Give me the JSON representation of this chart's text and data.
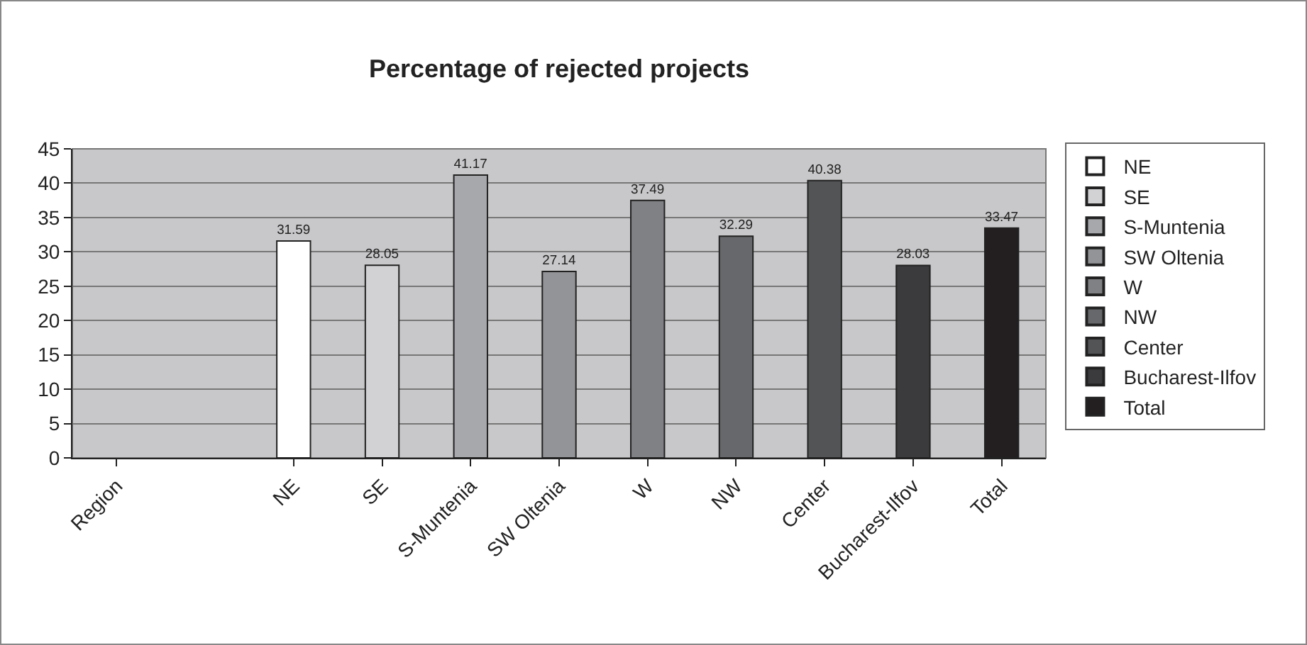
{
  "chart_data": {
    "type": "bar",
    "title": "Percentage of rejected projects",
    "categories": [
      "Region",
      null,
      "NE",
      "SE",
      "S-Muntenia",
      "SW Oltenia",
      "W",
      "NW",
      "Center",
      "Bucharest-Ilfov",
      "Total"
    ],
    "series": [
      {
        "name": "NE",
        "color": "#ffffff",
        "values": [
          null,
          null,
          31.59,
          null,
          null,
          null,
          null,
          null,
          null,
          null,
          null
        ]
      },
      {
        "name": "SE",
        "color": "#d2d2d4",
        "values": [
          null,
          null,
          null,
          28.05,
          null,
          null,
          null,
          null,
          null,
          null,
          null
        ]
      },
      {
        "name": "S-Muntenia",
        "color": "#a7a8ab",
        "values": [
          null,
          null,
          null,
          null,
          41.17,
          null,
          null,
          null,
          null,
          null,
          null
        ]
      },
      {
        "name": "SW Oltenia",
        "color": "#939497",
        "values": [
          null,
          null,
          null,
          null,
          null,
          27.14,
          null,
          null,
          null,
          null,
          null
        ]
      },
      {
        "name": "W",
        "color": "#808184",
        "values": [
          null,
          null,
          null,
          null,
          null,
          null,
          37.49,
          null,
          null,
          null,
          null
        ]
      },
      {
        "name": "NW",
        "color": "#67686b",
        "values": [
          null,
          null,
          null,
          null,
          null,
          null,
          null,
          32.29,
          null,
          null,
          null
        ]
      },
      {
        "name": "Center",
        "color": "#535456",
        "values": [
          null,
          null,
          null,
          null,
          null,
          null,
          null,
          null,
          40.38,
          null,
          null
        ]
      },
      {
        "name": "Bucharest-Ilfov",
        "color": "#3b3b3d",
        "values": [
          null,
          null,
          null,
          null,
          null,
          null,
          null,
          null,
          null,
          28.03,
          null
        ]
      },
      {
        "name": "Total",
        "color": "#231f20",
        "values": [
          null,
          null,
          null,
          null,
          null,
          null,
          null,
          null,
          null,
          null,
          33.47
        ]
      }
    ],
    "ylim": [
      0,
      45
    ],
    "yticks": [
      0,
      5,
      10,
      15,
      20,
      25,
      30,
      35,
      40,
      45
    ],
    "grid": "y",
    "legend": "right",
    "data_labels": true
  }
}
